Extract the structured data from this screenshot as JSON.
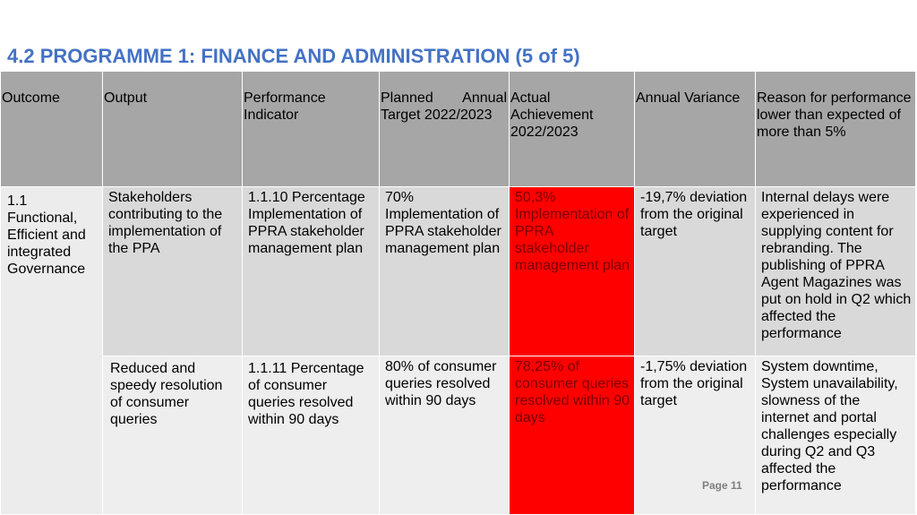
{
  "title": "4.2 PROGRAMME 1: FINANCE AND ADMINISTRATION (5 of 5)",
  "table": {
    "headers": {
      "outcome": "Outcome",
      "output": "Output",
      "indicator": "Performance Indicator",
      "planned_a": "Planned",
      "planned_b": "Annual",
      "planned_c": "Target 2022/2023",
      "actual": "Actual Achievement 2022/2023",
      "variance": "Annual Variance",
      "reason": "Reason for performance lower than expected of more than 5%"
    },
    "outcome": "1.1 Functional, Efficient and integrated Governance",
    "rows": [
      {
        "output": "Stakeholders contributing to the implementation of the PPA",
        "indicator": "1.1.10 Percentage Implementation of PPRA stakeholder management plan",
        "planned": "70% Implementation of PPRA stakeholder management plan",
        "actual": "50,3% Implementation of PPRA stakeholder management plan",
        "variance": "-19,7% deviation from the original target",
        "reason": "Internal delays were experienced in supplying content for rebranding. The publishing of PPRA Agent Magazines was put on hold in Q2 which affected the performance"
      },
      {
        "output": "Reduced and speedy resolution of consumer queries",
        "indicator": "1.1.11 Percentage of consumer queries resolved within 90 days",
        "planned": "80% of consumer queries resolved within 90 days",
        "actual": "78,25% of consumer queries resolved within 90 days",
        "variance": "-1,75% deviation from the original target",
        "reason": "System downtime, System unavailability, slowness of the internet and portal challenges especially during Q2 and Q3 affected the performance"
      }
    ]
  },
  "page_number": "Page 11",
  "colors": {
    "title": "#4472c4",
    "header_bg": "#a6a6a6",
    "highlight": "#ff0000"
  }
}
